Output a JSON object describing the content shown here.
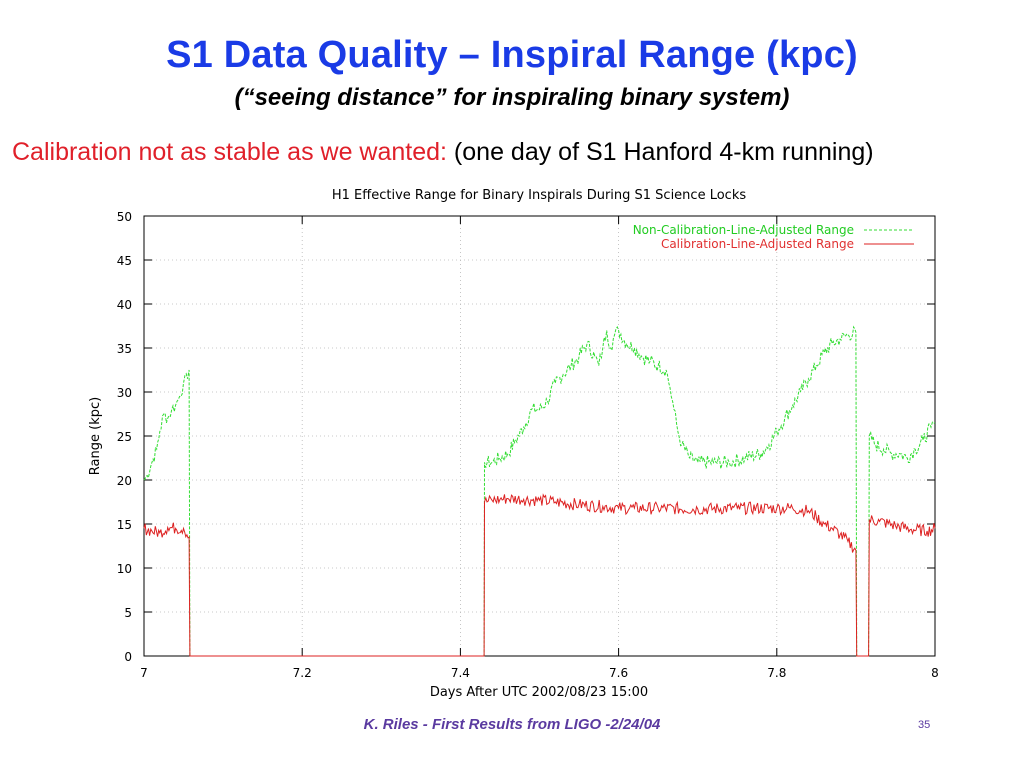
{
  "slide": {
    "title": "S1 Data Quality – Inspiral Range (kpc)",
    "subtitle": "(“seeing distance” for inspiraling binary system)",
    "caption_lead": "Calibration not as stable as we wanted:",
    "caption_rest": " (one day of S1 Hanford 4-km running)",
    "footer": "K. Riles - First Results from LIGO -2/24/04",
    "slide_number": "35"
  },
  "colors": {
    "title": "#1a3be6",
    "caption_lead": "#e0202a",
    "footer": "#5a3aa0",
    "non_calibration_series": "#33dd33",
    "calibration_series": "#dd2222",
    "legend_noncal_text": "#22cc22",
    "legend_cal_text": "#e03030"
  },
  "chart_data": {
    "type": "line",
    "title": "H1 Effective Range for Binary Inspirals During S1 Science Locks",
    "xlabel": "Days After UTC 2002/08/23 15:00",
    "ylabel": "Range (kpc)",
    "xlim": [
      7,
      8
    ],
    "ylim": [
      0,
      50
    ],
    "xticks": [
      "7",
      "7.2",
      "7.4",
      "7.6",
      "7.8",
      "8"
    ],
    "yticks": [
      "0",
      "5",
      "10",
      "15",
      "20",
      "25",
      "30",
      "35",
      "40",
      "45",
      "50"
    ],
    "grid": true,
    "legend_position": "top-right",
    "series": [
      {
        "name": "Non-Calibration-Line-Adjusted Range",
        "style": "dashed",
        "points": [
          [
            7.0,
            20.0
          ],
          [
            7.004,
            20.5
          ],
          [
            7.01,
            22.0
          ],
          [
            7.016,
            23.5
          ],
          [
            7.02,
            25.5
          ],
          [
            7.025,
            27.5
          ],
          [
            7.03,
            27.0
          ],
          [
            7.035,
            28.0
          ],
          [
            7.04,
            28.5
          ],
          [
            7.045,
            29.5
          ],
          [
            7.05,
            31.0
          ],
          [
            7.055,
            31.5
          ],
          [
            7.057,
            32.5
          ],
          [
            7.058,
            0.0
          ],
          [
            7.43,
            0.0
          ],
          [
            7.4305,
            22.0
          ],
          [
            7.44,
            22.0
          ],
          [
            7.45,
            22.5
          ],
          [
            7.46,
            23.0
          ],
          [
            7.47,
            24.5
          ],
          [
            7.48,
            26.0
          ],
          [
            7.49,
            28.0
          ],
          [
            7.5,
            28.0
          ],
          [
            7.51,
            29.0
          ],
          [
            7.52,
            31.0
          ],
          [
            7.53,
            32.0
          ],
          [
            7.54,
            33.0
          ],
          [
            7.55,
            34.0
          ],
          [
            7.56,
            35.5
          ],
          [
            7.57,
            34.0
          ],
          [
            7.575,
            33.0
          ],
          [
            7.58,
            35.0
          ],
          [
            7.585,
            37.0
          ],
          [
            7.59,
            35.0
          ],
          [
            7.595,
            36.5
          ],
          [
            7.6,
            37.0
          ],
          [
            7.61,
            35.5
          ],
          [
            7.62,
            35.0
          ],
          [
            7.63,
            34.0
          ],
          [
            7.64,
            33.5
          ],
          [
            7.65,
            33.0
          ],
          [
            7.66,
            32.5
          ],
          [
            7.665,
            30.5
          ],
          [
            7.67,
            28.0
          ],
          [
            7.675,
            25.5
          ],
          [
            7.68,
            24.0
          ],
          [
            7.69,
            22.5
          ],
          [
            7.7,
            22.0
          ],
          [
            7.72,
            22.0
          ],
          [
            7.74,
            22.0
          ],
          [
            7.76,
            22.5
          ],
          [
            7.78,
            23.0
          ],
          [
            7.79,
            24.0
          ],
          [
            7.8,
            25.5
          ],
          [
            7.81,
            27.0
          ],
          [
            7.82,
            28.5
          ],
          [
            7.83,
            30.0
          ],
          [
            7.84,
            31.5
          ],
          [
            7.85,
            33.0
          ],
          [
            7.86,
            34.5
          ],
          [
            7.87,
            35.5
          ],
          [
            7.88,
            36.0
          ],
          [
            7.89,
            36.5
          ],
          [
            7.9,
            36.8
          ],
          [
            7.901,
            0.0
          ],
          [
            7.916,
            0.0
          ],
          [
            7.917,
            25.0
          ],
          [
            7.925,
            24.0
          ],
          [
            7.935,
            23.5
          ],
          [
            7.945,
            23.0
          ],
          [
            7.955,
            23.0
          ],
          [
            7.965,
            22.5
          ],
          [
            7.975,
            23.5
          ],
          [
            7.985,
            24.5
          ],
          [
            7.995,
            26.0
          ],
          [
            8.0,
            26.5
          ]
        ]
      },
      {
        "name": "Calibration-Line-Adjusted Range",
        "style": "solid",
        "points": [
          [
            7.0,
            14.5
          ],
          [
            7.01,
            14.2
          ],
          [
            7.02,
            14.0
          ],
          [
            7.03,
            14.6
          ],
          [
            7.04,
            14.5
          ],
          [
            7.05,
            14.5
          ],
          [
            7.057,
            13.5
          ],
          [
            7.058,
            0.0
          ],
          [
            7.43,
            0.0
          ],
          [
            7.4305,
            17.5
          ],
          [
            7.44,
            17.7
          ],
          [
            7.45,
            17.8
          ],
          [
            7.46,
            17.9
          ],
          [
            7.48,
            17.8
          ],
          [
            7.5,
            17.7
          ],
          [
            7.52,
            17.5
          ],
          [
            7.55,
            17.2
          ],
          [
            7.58,
            17.0
          ],
          [
            7.6,
            16.8
          ],
          [
            7.62,
            16.8
          ],
          [
            7.65,
            16.8
          ],
          [
            7.7,
            16.7
          ],
          [
            7.75,
            16.8
          ],
          [
            7.8,
            16.8
          ],
          [
            7.82,
            16.8
          ],
          [
            7.84,
            16.5
          ],
          [
            7.85,
            15.8
          ],
          [
            7.86,
            15.0
          ],
          [
            7.87,
            14.5
          ],
          [
            7.88,
            13.8
          ],
          [
            7.89,
            13.0
          ],
          [
            7.9,
            12.0
          ],
          [
            7.901,
            0.0
          ],
          [
            7.916,
            0.0
          ],
          [
            7.917,
            15.5
          ],
          [
            7.93,
            15.3
          ],
          [
            7.95,
            14.8
          ],
          [
            7.97,
            14.4
          ],
          [
            7.99,
            14.2
          ],
          [
            8.0,
            14.5
          ]
        ]
      }
    ]
  }
}
